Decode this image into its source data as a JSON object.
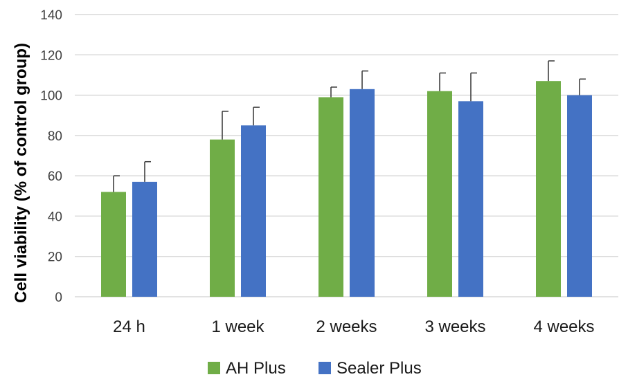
{
  "chart_data": {
    "type": "bar",
    "categories": [
      "24 h",
      "1 week",
      "2 weeks",
      "3 weeks",
      "4 weeks"
    ],
    "series": [
      {
        "name": "AH Plus",
        "color": "#70ad47",
        "values": [
          52,
          78,
          99,
          102,
          107
        ],
        "errors": [
          8,
          14,
          5,
          9,
          10
        ]
      },
      {
        "name": "Sealer Plus",
        "color": "#4472c4",
        "values": [
          57,
          85,
          103,
          97,
          100
        ],
        "errors": [
          10,
          9,
          9,
          14,
          8
        ]
      }
    ],
    "ylabel": "Cell viability (% of control group)",
    "xlabel": "",
    "ylim": [
      0,
      140
    ],
    "yticks": [
      0,
      20,
      40,
      60,
      80,
      100,
      120,
      140
    ],
    "grid": true,
    "legend_position": "bottom"
  }
}
